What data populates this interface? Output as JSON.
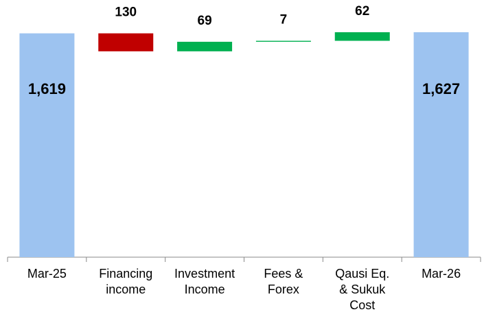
{
  "chart_data": {
    "type": "waterfall",
    "categories": [
      "Mar-25",
      "Financing income",
      "Investment Income",
      "Fees & Forex",
      "Qausi Eq. & Sukuk Cost",
      "Mar-26"
    ],
    "values": [
      1619,
      -130,
      69,
      7,
      62,
      1627
    ],
    "value_labels": [
      "1,619",
      "130",
      "69",
      "7",
      "62",
      "1,627"
    ],
    "measure": [
      "absolute",
      "relative",
      "relative",
      "relative",
      "relative",
      "total"
    ],
    "colors": {
      "total": "#9dc3f0",
      "increase": "#00b050",
      "decrease": "#c00000"
    }
  }
}
